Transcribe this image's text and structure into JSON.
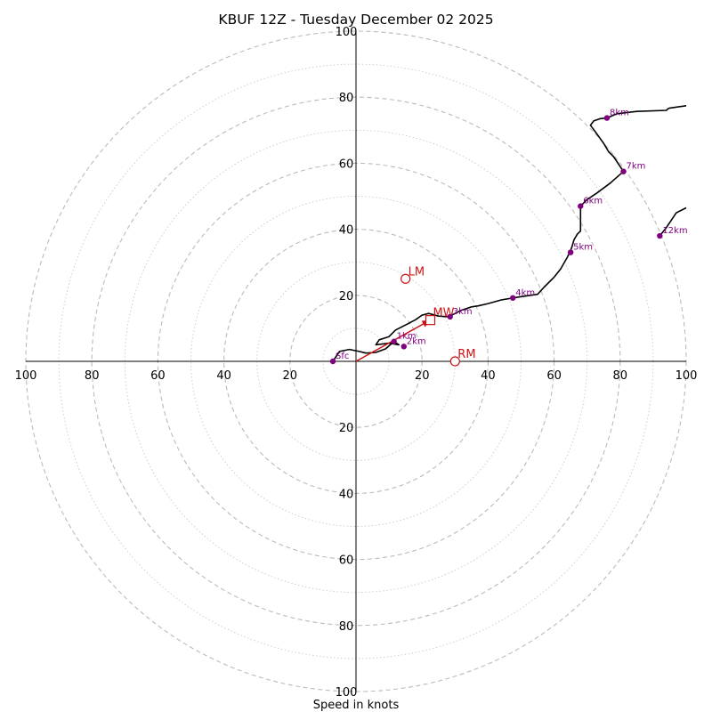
{
  "chart_data": {
    "type": "hodograph",
    "title": "KBUF 12Z - Tuesday December 02 2025",
    "xlabel": "Speed in knots",
    "range": [
      -100,
      100
    ],
    "ring_step_major": 20,
    "ring_step_minor": 10,
    "tick_values": [
      100,
      80,
      60,
      40,
      20
    ],
    "colors": {
      "trace": "#000000",
      "height_marker": "#800080",
      "motion": "#cc1414",
      "grid": "#bbbbbb",
      "axis": "#000000"
    },
    "trace": [
      [
        -7,
        0
      ],
      [
        -5,
        3
      ],
      [
        -2,
        3.6
      ],
      [
        1,
        3
      ],
      [
        3,
        2.5
      ],
      [
        6,
        2.7
      ],
      [
        9,
        3.8
      ],
      [
        11.5,
        6
      ],
      [
        13,
        5
      ],
      [
        10,
        5.5
      ],
      [
        6,
        5
      ],
      [
        7,
        6.5
      ],
      [
        10,
        7.5
      ],
      [
        12,
        9.5
      ],
      [
        15,
        11
      ],
      [
        18,
        12.6
      ],
      [
        20,
        14
      ],
      [
        22,
        14.5
      ],
      [
        25,
        13.7
      ],
      [
        28,
        13.5
      ],
      [
        30,
        14.5
      ],
      [
        32,
        15.5
      ],
      [
        35,
        16.5
      ],
      [
        37,
        16.8
      ],
      [
        40,
        17.5
      ],
      [
        44,
        18.6
      ],
      [
        47.5,
        19.2
      ],
      [
        50,
        19.6
      ],
      [
        55,
        20.3
      ],
      [
        57,
        22.5
      ],
      [
        60,
        25.5
      ],
      [
        62,
        28
      ],
      [
        64,
        31.5
      ],
      [
        65,
        33.5
      ],
      [
        65.5,
        35
      ],
      [
        66,
        36.8
      ],
      [
        67,
        38.5
      ],
      [
        68,
        39.5
      ],
      [
        68,
        43.5
      ],
      [
        68,
        47
      ],
      [
        70,
        49
      ],
      [
        73,
        51
      ],
      [
        77,
        54
      ],
      [
        81,
        57.5
      ],
      [
        80,
        59
      ],
      [
        78,
        62
      ],
      [
        76.5,
        63.5
      ],
      [
        75,
        66
      ],
      [
        72.5,
        69.5
      ],
      [
        71,
        71.5
      ],
      [
        72,
        72.8
      ],
      [
        74,
        73.5
      ],
      [
        76,
        73.7
      ],
      [
        79,
        75
      ],
      [
        85,
        75.7
      ],
      [
        94,
        76
      ],
      [
        94.5,
        76.5
      ],
      [
        95,
        76.7
      ],
      [
        100,
        77.4
      ]
    ],
    "trace2": [
      [
        92,
        38
      ],
      [
        94,
        40.5
      ],
      [
        96,
        43.5
      ],
      [
        97,
        45
      ],
      [
        100,
        46.5
      ]
    ],
    "height_markers": [
      {
        "label": "Sfc",
        "u": -7,
        "v": 0
      },
      {
        "label": "1km",
        "u": 11.5,
        "v": 6
      },
      {
        "label": "2km",
        "u": 14.5,
        "v": 4.5
      },
      {
        "label": "3km",
        "u": 28.5,
        "v": 13.5
      },
      {
        "label": "4km",
        "u": 47.5,
        "v": 19.2
      },
      {
        "label": "5km",
        "u": 65,
        "v": 33
      },
      {
        "label": "6km",
        "u": 68,
        "v": 47
      },
      {
        "label": "7km",
        "u": 81,
        "v": 57.5
      },
      {
        "label": "8km",
        "u": 76,
        "v": 73.7
      },
      {
        "label": "12km",
        "u": 92,
        "v": 38
      }
    ],
    "storm_motion": [
      {
        "label": "LM",
        "u": 15,
        "v": 25,
        "marker": "circle"
      },
      {
        "label": "MW",
        "u": 22.5,
        "v": 12.5,
        "marker": "square"
      },
      {
        "label": "RM",
        "u": 30,
        "v": 0,
        "marker": "circle"
      }
    ],
    "shear_arrow": {
      "from": [
        0,
        0
      ],
      "to": [
        22.5,
        12.5
      ]
    }
  }
}
